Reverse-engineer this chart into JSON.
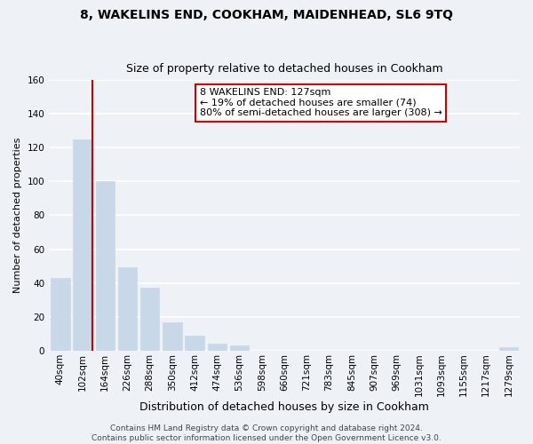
{
  "title": "8, WAKELINS END, COOKHAM, MAIDENHEAD, SL6 9TQ",
  "subtitle": "Size of property relative to detached houses in Cookham",
  "xlabel": "Distribution of detached houses by size in Cookham",
  "ylabel": "Number of detached properties",
  "bar_labels": [
    "40sqm",
    "102sqm",
    "164sqm",
    "226sqm",
    "288sqm",
    "350sqm",
    "412sqm",
    "474sqm",
    "536sqm",
    "598sqm",
    "660sqm",
    "721sqm",
    "783sqm",
    "845sqm",
    "907sqm",
    "969sqm",
    "1031sqm",
    "1093sqm",
    "1155sqm",
    "1217sqm",
    "1279sqm"
  ],
  "bar_values": [
    43,
    125,
    100,
    49,
    37,
    17,
    9,
    4,
    3,
    0,
    0,
    0,
    0,
    0,
    0,
    0,
    0,
    0,
    0,
    0,
    2
  ],
  "bar_color": "#c8d8e8",
  "marker_line_color": "#cc0000",
  "marker_bar_index": 1,
  "ylim": [
    0,
    160
  ],
  "yticks": [
    0,
    20,
    40,
    60,
    80,
    100,
    120,
    140,
    160
  ],
  "annotation_title": "8 WAKELINS END: 127sqm",
  "annotation_line1": "← 19% of detached houses are smaller (74)",
  "annotation_line2": "80% of semi-detached houses are larger (308) →",
  "annotation_box_facecolor": "#ffffff",
  "annotation_box_edgecolor": "#cc0000",
  "footer_line1": "Contains HM Land Registry data © Crown copyright and database right 2024.",
  "footer_line2": "Contains public sector information licensed under the Open Government Licence v3.0.",
  "background_color": "#eef2f7",
  "grid_color": "#ffffff",
  "title_fontsize": 10,
  "subtitle_fontsize": 9,
  "xlabel_fontsize": 9,
  "ylabel_fontsize": 8,
  "tick_fontsize": 7.5,
  "annotation_fontsize": 8,
  "footer_fontsize": 6.5
}
